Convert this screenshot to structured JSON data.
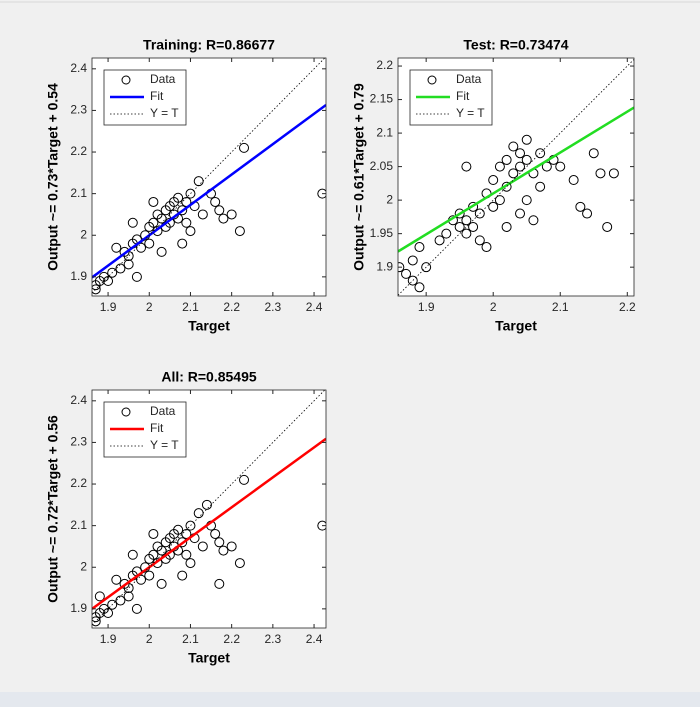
{
  "chart_data": [
    {
      "type": "scatter",
      "title": "Training: R=0.86677",
      "xlabel": "Target",
      "ylabel": "Output ~= 0.73*Target + 0.54",
      "xlim": [
        1.861,
        2.429
      ],
      "ylim": [
        1.854,
        2.426
      ],
      "xticks": [
        1.9,
        2,
        2.1,
        2.2,
        2.3,
        2.4
      ],
      "yticks": [
        1.9,
        2,
        2.1,
        2.2,
        2.3,
        2.4
      ],
      "legend": "upper left",
      "series": [
        {
          "name": "Data",
          "color": "#000000",
          "x": [
            1.87,
            1.88,
            1.89,
            1.87,
            1.9,
            1.91,
            1.93,
            1.94,
            1.95,
            1.96,
            1.95,
            1.97,
            1.98,
            1.99,
            2.0,
            2.0,
            2.01,
            2.02,
            2.02,
            2.03,
            2.04,
            2.04,
            2.05,
            2.05,
            2.06,
            2.06,
            2.07,
            2.07,
            2.08,
            2.09,
            2.09,
            2.1,
            2.11,
            2.12,
            2.13,
            2.15,
            2.16,
            2.17,
            2.18,
            2.2,
            2.23,
            2.22,
            2.42,
            1.97,
            2.03,
            2.08,
            2.1,
            1.92,
            1.96,
            2.01
          ],
          "values": [
            1.88,
            1.89,
            1.9,
            1.87,
            1.89,
            1.91,
            1.92,
            1.96,
            1.95,
            1.98,
            1.93,
            1.99,
            1.97,
            2.0,
            2.02,
            1.98,
            2.03,
            2.01,
            2.05,
            2.04,
            2.06,
            2.02,
            2.07,
            2.03,
            2.08,
            2.05,
            2.09,
            2.04,
            2.06,
            2.08,
            2.03,
            2.1,
            2.07,
            2.13,
            2.05,
            2.1,
            2.08,
            2.06,
            2.04,
            2.05,
            2.21,
            2.01,
            2.1,
            1.9,
            1.96,
            1.98,
            2.01,
            1.97,
            2.03,
            2.08
          ]
        },
        {
          "name": "Fit",
          "color": "#0000ff",
          "slope": 0.73,
          "intercept": 0.54
        },
        {
          "name": "Y = T",
          "color": "#000000"
        }
      ]
    },
    {
      "type": "scatter",
      "title": "Test: R=0.73474",
      "xlabel": "Target",
      "ylabel": "Output ~= 0.61*Target + 0.79",
      "xlim": [
        1.858,
        2.21
      ],
      "ylim": [
        1.857,
        2.212
      ],
      "xticks": [
        1.9,
        2,
        2.1,
        2.2
      ],
      "yticks": [
        1.9,
        1.95,
        2,
        2.05,
        2.1,
        2.15,
        2.2
      ],
      "legend": "upper left",
      "series": [
        {
          "name": "Data",
          "color": "#000000",
          "x": [
            1.86,
            1.87,
            1.88,
            1.89,
            1.88,
            1.89,
            1.9,
            1.93,
            1.94,
            1.95,
            1.95,
            1.96,
            1.96,
            1.97,
            1.97,
            1.98,
            1.98,
            1.99,
            2.0,
            2.0,
            2.01,
            2.01,
            2.02,
            2.02,
            2.03,
            2.03,
            2.04,
            2.04,
            2.04,
            2.05,
            2.05,
            2.05,
            2.06,
            2.06,
            2.07,
            2.07,
            2.08,
            2.09,
            2.1,
            2.12,
            2.13,
            2.14,
            2.15,
            2.16,
            2.17,
            2.18,
            1.96,
            1.99,
            2.02,
            1.92
          ],
          "values": [
            1.9,
            1.89,
            1.88,
            1.87,
            1.91,
            1.93,
            1.9,
            1.95,
            1.97,
            1.96,
            1.98,
            1.95,
            1.97,
            1.99,
            1.96,
            1.98,
            1.94,
            2.01,
            1.99,
            2.03,
            2.0,
            2.05,
            2.02,
            2.06,
            2.04,
            2.08,
            2.05,
            2.07,
            1.98,
            2.06,
            2.09,
            2.0,
            2.04,
            1.97,
            2.07,
            2.02,
            2.05,
            2.06,
            2.05,
            2.03,
            1.99,
            1.98,
            2.07,
            2.04,
            1.96,
            2.04,
            2.05,
            1.93,
            1.96,
            1.94
          ]
        },
        {
          "name": "Fit",
          "color": "#22dd22",
          "slope": 0.61,
          "intercept": 0.79
        },
        {
          "name": "Y = T",
          "color": "#000000"
        }
      ]
    },
    {
      "type": "scatter",
      "title": "All: R=0.85495",
      "xlabel": "Target",
      "ylabel": "Output ~= 0.72*Target + 0.56",
      "xlim": [
        1.861,
        2.429
      ],
      "ylim": [
        1.854,
        2.426
      ],
      "xticks": [
        1.9,
        2,
        2.1,
        2.2,
        2.3,
        2.4
      ],
      "yticks": [
        1.9,
        2,
        2.1,
        2.2,
        2.3,
        2.4
      ],
      "legend": "upper left",
      "series": [
        {
          "name": "Data",
          "color": "#000000",
          "x": [
            1.87,
            1.88,
            1.89,
            1.87,
            1.9,
            1.91,
            1.93,
            1.94,
            1.95,
            1.96,
            1.95,
            1.97,
            1.98,
            1.99,
            2.0,
            2.0,
            2.01,
            2.02,
            2.02,
            2.03,
            2.04,
            2.04,
            2.05,
            2.05,
            2.06,
            2.06,
            2.07,
            2.07,
            2.08,
            2.09,
            2.09,
            2.1,
            2.11,
            2.12,
            2.13,
            2.15,
            2.16,
            2.17,
            2.18,
            2.2,
            2.23,
            2.22,
            2.42,
            1.97,
            2.03,
            2.08,
            2.1,
            1.92,
            1.96,
            2.01,
            1.88,
            2.14,
            2.17
          ],
          "values": [
            1.88,
            1.89,
            1.9,
            1.87,
            1.89,
            1.91,
            1.92,
            1.96,
            1.95,
            1.98,
            1.93,
            1.99,
            1.97,
            2.0,
            2.02,
            1.98,
            2.03,
            2.01,
            2.05,
            2.04,
            2.06,
            2.02,
            2.07,
            2.03,
            2.08,
            2.05,
            2.09,
            2.04,
            2.06,
            2.08,
            2.03,
            2.1,
            2.07,
            2.13,
            2.05,
            2.1,
            2.08,
            2.06,
            2.04,
            2.05,
            2.21,
            2.01,
            2.1,
            1.9,
            1.96,
            1.98,
            2.01,
            1.97,
            2.03,
            2.08,
            1.93,
            2.15,
            1.96
          ]
        },
        {
          "name": "Fit",
          "color": "#ff0000",
          "slope": 0.72,
          "intercept": 0.56
        },
        {
          "name": "Y = T",
          "color": "#000000"
        }
      ]
    }
  ]
}
